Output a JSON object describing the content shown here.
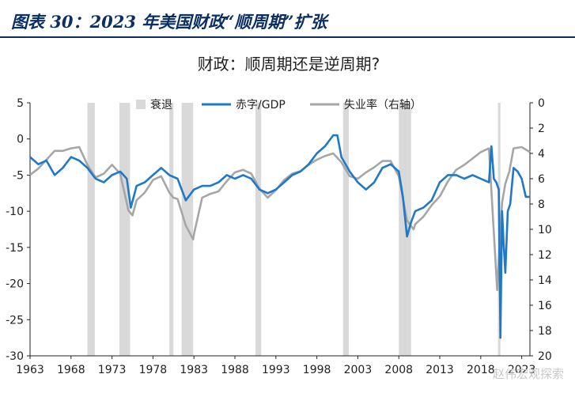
{
  "figure_title": "图表 30：2023 年美国财政“顺周期”扩张",
  "watermark": "赵伟宏观探索",
  "colors": {
    "deficit": "#1f78c8",
    "unemployment": "#a6a6a6",
    "recession": "#d9d9d9",
    "title": "#0b2f63"
  },
  "chart_data": {
    "type": "line",
    "title": "财政：顺周期还是逆周期?",
    "xlabel": "",
    "ylabel": "",
    "y2label": "",
    "xlim": [
      1963,
      2024
    ],
    "ylim": [
      -30,
      5
    ],
    "y2lim": [
      0,
      20
    ],
    "y2_inverted": true,
    "grid": false,
    "legend_position": "top-center",
    "x_ticks": [
      "1963",
      "1968",
      "1973",
      "1978",
      "1983",
      "1988",
      "1993",
      "1998",
      "2003",
      "2008",
      "2013",
      "2018",
      "2023"
    ],
    "y_ticks": [
      "5",
      "0",
      "-5",
      "-10",
      "-15",
      "-20",
      "-25",
      "-30"
    ],
    "y2_ticks": [
      "0",
      "2",
      "4",
      "6",
      "8",
      "10",
      "12",
      "14",
      "16",
      "18",
      "20"
    ],
    "recessions": [
      {
        "start": 1970.0,
        "end": 1970.9,
        "label": "衰退"
      },
      {
        "start": 1973.9,
        "end": 1975.2
      },
      {
        "start": 1980.0,
        "end": 1980.5
      },
      {
        "start": 1981.5,
        "end": 1982.9
      },
      {
        "start": 1990.5,
        "end": 1991.2
      },
      {
        "start": 2001.2,
        "end": 2001.9
      },
      {
        "start": 2008.0,
        "end": 2009.5
      },
      {
        "start": 2020.1,
        "end": 2020.4
      }
    ],
    "series": [
      {
        "name": "赤字/GDP",
        "axis": "left",
        "x": [
          1963,
          1964,
          1965,
          1966,
          1967,
          1968,
          1969,
          1970,
          1971,
          1972,
          1973,
          1974,
          1974.8,
          1975.3,
          1976,
          1977,
          1978,
          1979,
          1980,
          1981,
          1982,
          1983,
          1984,
          1985,
          1986,
          1987,
          1988,
          1989,
          1990,
          1991,
          1992,
          1993,
          1994,
          1995,
          1996,
          1997,
          1998,
          1999,
          2000,
          2000.5,
          2001,
          2002,
          2003,
          2004,
          2005,
          2006,
          2007,
          2008,
          2008.5,
          2009,
          2009.5,
          2010,
          2011,
          2012,
          2013,
          2014,
          2015,
          2016,
          2017,
          2018,
          2019,
          2019.3,
          2019.6,
          2019.9,
          2020.2,
          2020.4,
          2020.6,
          2020.8,
          2021,
          2021.3,
          2021.6,
          2022,
          2022.5,
          2023,
          2023.5,
          2024
        ],
        "y": [
          -2.5,
          -3.5,
          -3.0,
          -5.0,
          -4.0,
          -2.5,
          -3.0,
          -4.0,
          -5.5,
          -6.0,
          -5.0,
          -4.5,
          -5.5,
          -9.5,
          -6.5,
          -6.0,
          -5.0,
          -4.0,
          -5.0,
          -5.5,
          -8.5,
          -7.0,
          -6.5,
          -6.5,
          -6.0,
          -5.0,
          -5.5,
          -5.0,
          -5.5,
          -7.0,
          -7.5,
          -7.0,
          -6.0,
          -5.0,
          -4.5,
          -3.5,
          -2.0,
          -1.0,
          0.5,
          0.5,
          -2.5,
          -4.5,
          -6.0,
          -7.0,
          -6.0,
          -4.0,
          -3.5,
          -4.5,
          -8.0,
          -13.5,
          -11.5,
          -10.0,
          -9.5,
          -8.5,
          -6.0,
          -5.0,
          -5.0,
          -5.5,
          -5.0,
          -5.5,
          -6.0,
          -1.0,
          -5.5,
          -6.0,
          -7.0,
          -27.5,
          -10.0,
          -14.5,
          -18.5,
          -10.0,
          -9.0,
          -4.0,
          -4.5,
          -5.5,
          -8.0,
          -8.0
        ]
      },
      {
        "name": "失业率（右轴）",
        "axis": "right",
        "x": [
          1963,
          1964,
          1965,
          1966,
          1967,
          1968,
          1969,
          1970,
          1971,
          1972,
          1973,
          1974,
          1975,
          1975.5,
          1976,
          1977,
          1978,
          1979,
          1980,
          1980.5,
          1981,
          1982,
          1982.9,
          1983,
          1984,
          1985,
          1986,
          1987,
          1988,
          1989,
          1990,
          1991,
          1992,
          1993,
          1994,
          1995,
          1996,
          1997,
          1998,
          1999,
          2000,
          2001,
          2002,
          2003,
          2004,
          2005,
          2006,
          2007,
          2008,
          2009,
          2009.8,
          2010,
          2011,
          2012,
          2013,
          2014,
          2015,
          2016,
          2017,
          2018,
          2019,
          2020,
          2020.3,
          2020.6,
          2021,
          2021.5,
          2022,
          2023,
          2024
        ],
        "y": [
          5.7,
          5.2,
          4.5,
          3.8,
          3.8,
          3.6,
          3.5,
          4.9,
          5.9,
          5.6,
          4.9,
          5.6,
          8.5,
          8.9,
          7.7,
          7.1,
          6.1,
          5.8,
          7.1,
          7.5,
          7.6,
          9.7,
          10.8,
          10.4,
          7.5,
          7.2,
          7.0,
          6.2,
          5.5,
          5.3,
          5.6,
          6.8,
          7.5,
          6.9,
          6.1,
          5.6,
          5.4,
          4.9,
          4.5,
          4.2,
          4.0,
          4.7,
          5.8,
          6.0,
          5.5,
          5.1,
          4.6,
          4.6,
          5.8,
          9.3,
          10.0,
          9.6,
          9.0,
          8.1,
          7.4,
          6.2,
          5.3,
          4.9,
          4.4,
          3.9,
          3.6,
          14.8,
          11.0,
          7.9,
          6.4,
          5.4,
          3.6,
          3.5,
          3.9
        ]
      }
    ]
  }
}
